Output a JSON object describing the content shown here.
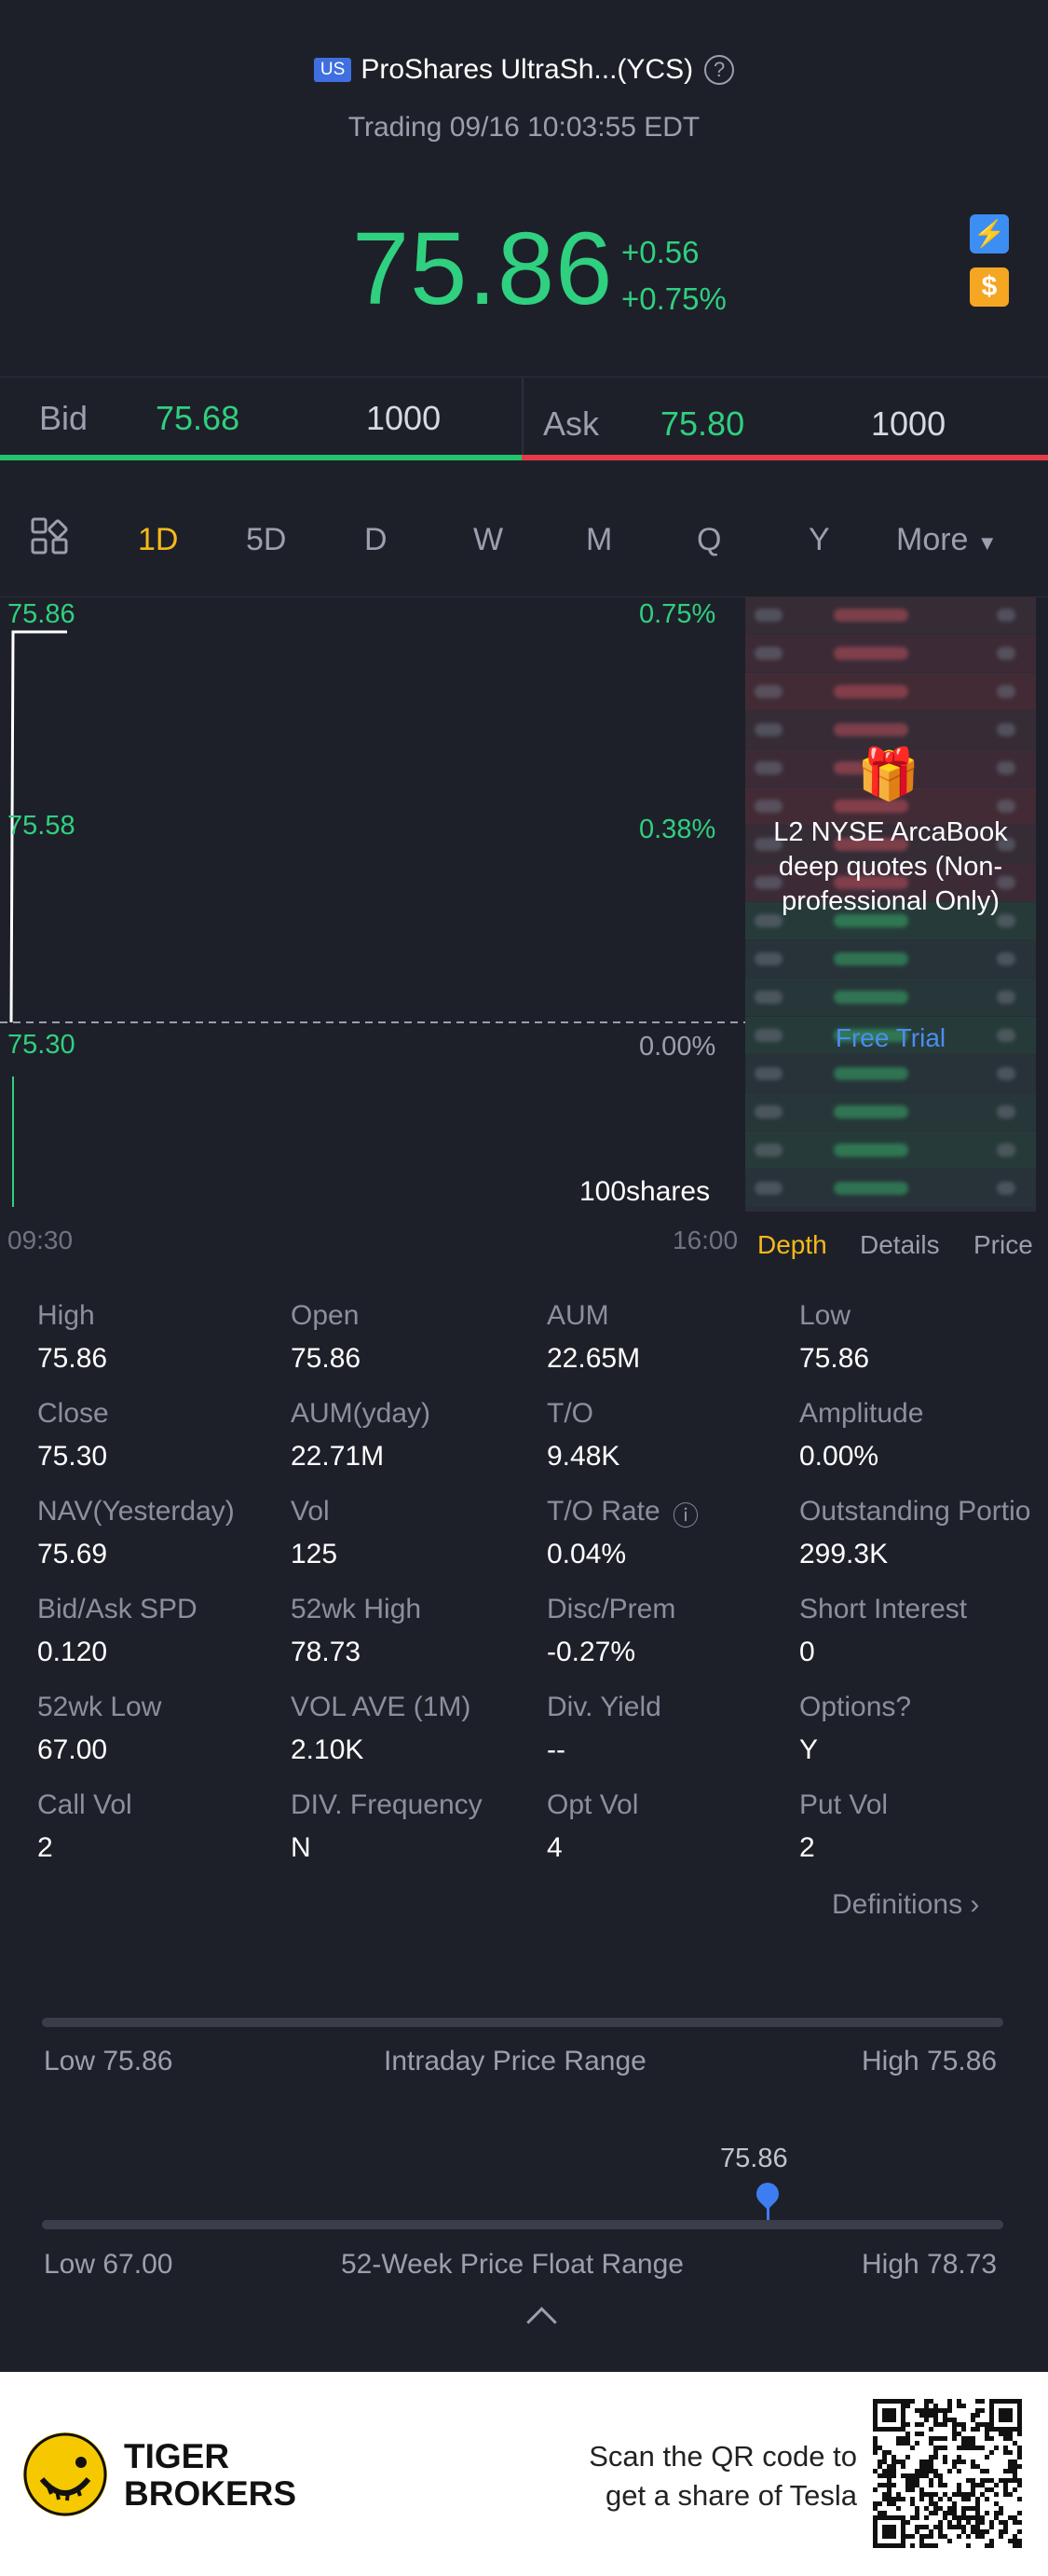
{
  "header": {
    "market_badge": "US",
    "title": "ProShares UltraSh...(YCS)",
    "status": "Trading 09/16 10:03:55 EDT",
    "price": "75.86",
    "change": "+0.56",
    "change_pct": "+0.75%",
    "accent_color": "#2fd07f"
  },
  "quote": {
    "bid_label": "Bid",
    "bid_price": "75.68",
    "bid_size": "1000",
    "ask_label": "Ask",
    "ask_price": "75.80",
    "ask_size": "1000"
  },
  "tabs": [
    "1D",
    "5D",
    "D",
    "W",
    "M",
    "Q",
    "Y",
    "More"
  ],
  "active_tab": "1D",
  "chart": {
    "y_left": [
      "75.86",
      "75.58",
      "75.30"
    ],
    "y_right": [
      "0.75%",
      "0.38%",
      "0.00%"
    ],
    "x_start": "09:30",
    "x_end": "16:00",
    "volume_label": "100shares"
  },
  "chart_data": {
    "type": "line",
    "x": [
      "09:30",
      "09:31"
    ],
    "series": [
      {
        "values": [
          75.3,
          75.86
        ]
      }
    ],
    "ylim": [
      75.3,
      75.86
    ],
    "volume": [
      100
    ]
  },
  "depth_panel": {
    "promo_text": "L2 NYSE ArcaBook deep quotes (Non-professional Only)",
    "cta": "Free Trial",
    "tabs": [
      "Depth",
      "Details",
      "Price"
    ],
    "active": "Depth"
  },
  "stats": [
    {
      "label": "High",
      "value": "75.86"
    },
    {
      "label": "Open",
      "value": "75.86"
    },
    {
      "label": "AUM",
      "value": "22.65M"
    },
    {
      "label": "Low",
      "value": "75.86"
    },
    {
      "label": "Close",
      "value": "75.30"
    },
    {
      "label": "AUM(yday)",
      "value": "22.71M"
    },
    {
      "label": "T/O",
      "value": "9.48K"
    },
    {
      "label": "Amplitude",
      "value": "0.00%"
    },
    {
      "label": "NAV(Yesterday)",
      "value": "75.69"
    },
    {
      "label": "Vol",
      "value": "125"
    },
    {
      "label": "T/O Rate",
      "value": "0.04%"
    },
    {
      "label": "Outstanding Portio",
      "value": "299.3K"
    },
    {
      "label": "Bid/Ask SPD",
      "value": "0.120"
    },
    {
      "label": "52wk High",
      "value": "78.73"
    },
    {
      "label": "Disc/Prem",
      "value": "-0.27%"
    },
    {
      "label": "Short Interest",
      "value": "0"
    },
    {
      "label": "52wk Low",
      "value": "67.00"
    },
    {
      "label": "VOL AVE (1M)",
      "value": "2.10K"
    },
    {
      "label": "Div. Yield",
      "value": "--"
    },
    {
      "label": "Options?",
      "value": "Y"
    },
    {
      "label": "Call Vol",
      "value": "2"
    },
    {
      "label": "DIV. Frequency",
      "value": "N"
    },
    {
      "label": "Opt Vol",
      "value": "4"
    },
    {
      "label": "Put Vol",
      "value": "2"
    }
  ],
  "definitions_link": "Definitions",
  "ranges": {
    "intraday": {
      "low": "Low 75.86",
      "title": "Intraday Price Range",
      "high": "High 75.86"
    },
    "week52": {
      "low": "Low 67.00",
      "title": "52-Week Price Float Range",
      "high": "High 78.73",
      "current": "75.86",
      "position_fraction": 0.758
    }
  },
  "footer": {
    "brand_line1": "TIGER",
    "brand_line2": "BROKERS",
    "scan_line1": "Scan the QR code to",
    "scan_line2": "get a share of Tesla"
  }
}
